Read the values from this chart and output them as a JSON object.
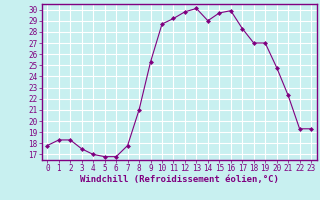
{
  "x": [
    0,
    1,
    2,
    3,
    4,
    5,
    6,
    7,
    8,
    9,
    10,
    11,
    12,
    13,
    14,
    15,
    16,
    17,
    18,
    19,
    20,
    21,
    22,
    23
  ],
  "y": [
    17.8,
    18.3,
    18.3,
    17.5,
    17.0,
    16.8,
    16.8,
    17.8,
    21.0,
    25.3,
    28.7,
    29.2,
    29.8,
    30.1,
    29.0,
    29.7,
    29.9,
    28.3,
    27.0,
    27.0,
    24.8,
    22.3,
    19.3,
    19.3
  ],
  "line_color": "#800080",
  "marker": "D",
  "marker_size": 2,
  "bg_color": "#c8f0f0",
  "grid_color": "#ffffff",
  "ylabel_ticks": [
    17,
    18,
    19,
    20,
    21,
    22,
    23,
    24,
    25,
    26,
    27,
    28,
    29,
    30
  ],
  "ylim": [
    16.5,
    30.5
  ],
  "xlim": [
    -0.5,
    23.5
  ],
  "xlabel": "Windchill (Refroidissement éolien,°C)",
  "tick_fontsize": 5.5,
  "label_fontsize": 6.5,
  "spine_color": "#800080",
  "axis_bg": "#c8f0f0"
}
